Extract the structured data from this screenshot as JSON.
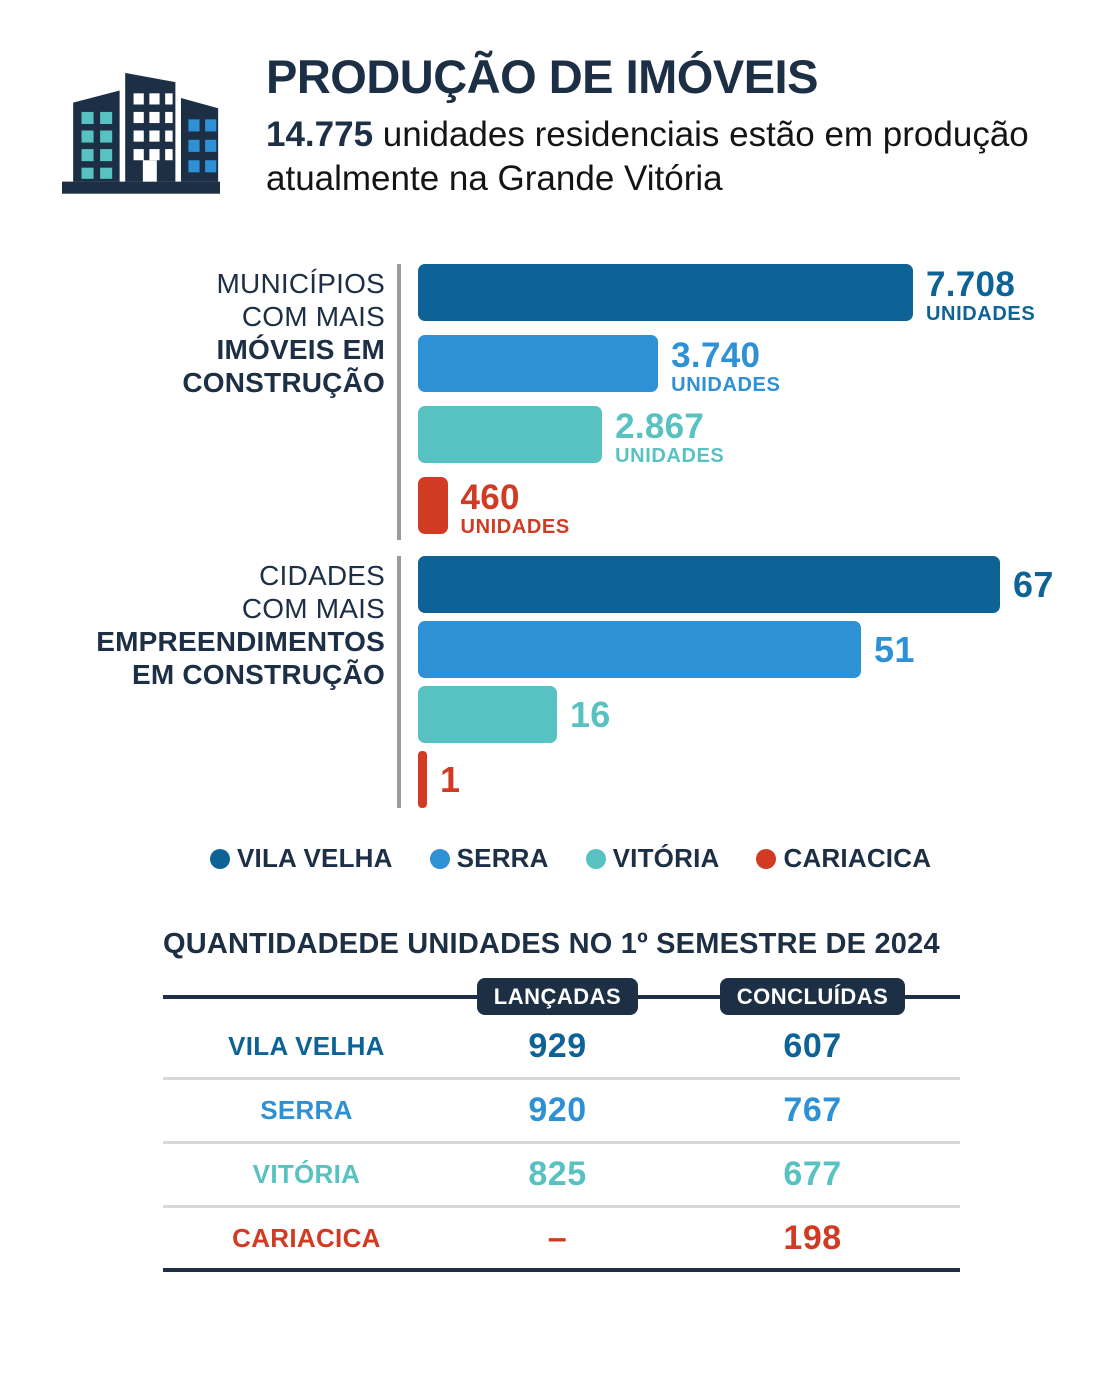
{
  "colors": {
    "navy": "#1C2F45",
    "series": [
      "#0D6396",
      "#2E90D5",
      "#57C2C1",
      "#D23B23"
    ],
    "axis_gray": "#9B9B9B",
    "separator_gray": "#D8D8D8",
    "background": "#FFFFFF"
  },
  "header": {
    "title": "PRODUÇÃO DE IMÓVEIS",
    "subtitle_highlight": "14.775",
    "subtitle_rest": " unidades residenciais estão em produção atualmente na Grande Vitória"
  },
  "chart_data": [
    {
      "type": "bar",
      "orientation": "horizontal",
      "label_lines_regular": [
        "MUNICÍPIOS",
        "COM MAIS"
      ],
      "label_lines_bold": [
        "IMÓVEIS EM",
        "CONSTRUÇÃO"
      ],
      "categories": [
        "VILA VELHA",
        "SERRA",
        "VITÓRIA",
        "CARIACICA"
      ],
      "values": [
        7708,
        3740,
        2867,
        460
      ],
      "value_labels": [
        "7.708",
        "3.740",
        "2.867",
        "460"
      ],
      "unit_label": "UNIDADES",
      "xlim": [
        0,
        7708
      ],
      "colors": [
        "#0D6396",
        "#2E90D5",
        "#57C2C1",
        "#D23B23"
      ],
      "grid": false,
      "legend_position": "below-charts"
    },
    {
      "type": "bar",
      "orientation": "horizontal",
      "label_lines_regular": [
        "CIDADES",
        "COM MAIS"
      ],
      "label_lines_bold": [
        "EMPREENDIMENTOS",
        "EM CONSTRUÇÃO"
      ],
      "categories": [
        "VILA VELHA",
        "SERRA",
        "VITÓRIA",
        "CARIACICA"
      ],
      "values": [
        67,
        51,
        16,
        1
      ],
      "value_labels": [
        "67",
        "51",
        "16",
        "1"
      ],
      "unit_label": "",
      "xlim": [
        0,
        67
      ],
      "colors": [
        "#0D6396",
        "#2E90D5",
        "#57C2C1",
        "#D23B23"
      ],
      "grid": false,
      "legend_position": "below-charts"
    }
  ],
  "legend": {
    "items": [
      {
        "label": "VILA VELHA",
        "color": "#0D6396"
      },
      {
        "label": "SERRA",
        "color": "#2E90D5"
      },
      {
        "label": "VITÓRIA",
        "color": "#57C2C1"
      },
      {
        "label": "CARIACICA",
        "color": "#D23B23"
      }
    ]
  },
  "table": {
    "title_regular": "QUANTIDADEDE UNIDADES NO ",
    "title_bold": "1º SEMESTRE DE 2024",
    "columns": [
      "LANÇADAS",
      "CONCLUÍDAS"
    ],
    "rows": [
      {
        "city": "VILA VELHA",
        "lancadas": "929",
        "concluidas": "607",
        "color": "#0D6396"
      },
      {
        "city": "SERRA",
        "lancadas": "920",
        "concluidas": "767",
        "color": "#2E90D5"
      },
      {
        "city": "VITÓRIA",
        "lancadas": "825",
        "concluidas": "677",
        "color": "#57C2C1"
      },
      {
        "city": "CARIACICA",
        "lancadas": "–",
        "concluidas": "198",
        "color": "#D23B23"
      }
    ]
  }
}
